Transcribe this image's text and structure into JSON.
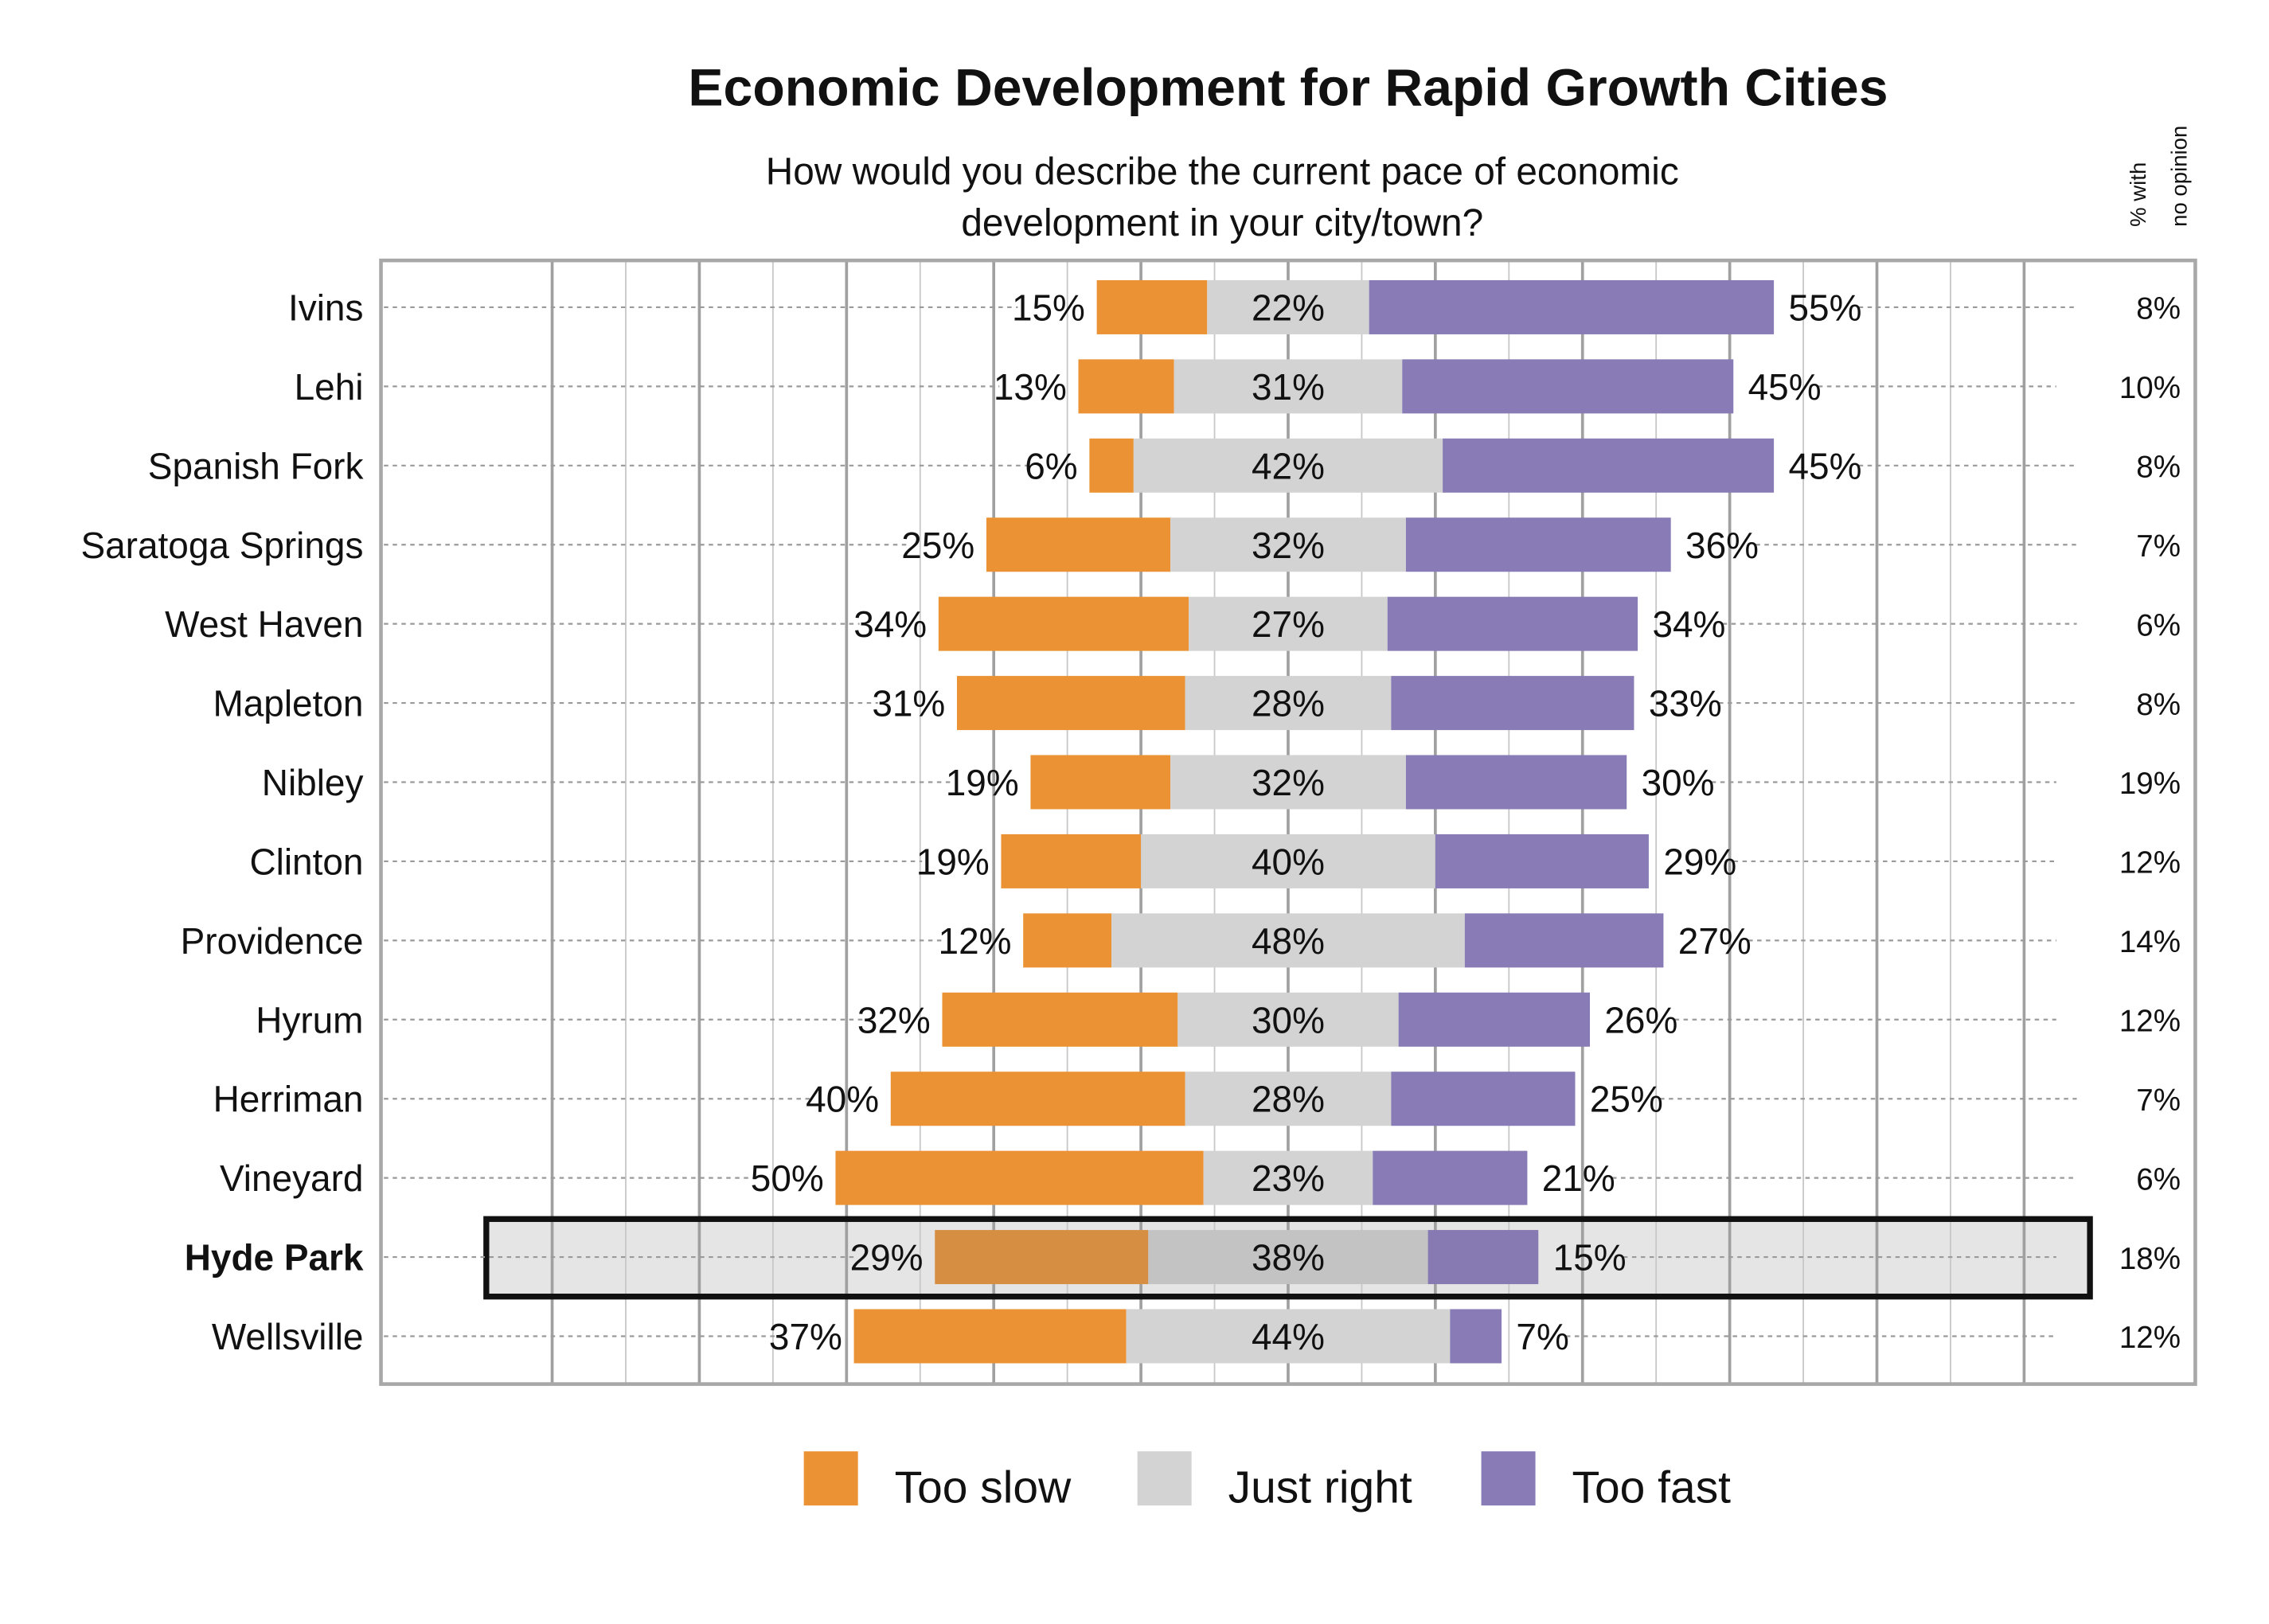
{
  "chart_data": {
    "type": "bar",
    "orientation": "horizontal-diverging-stacked",
    "title": "Economic Development for Rapid Growth Cities",
    "subtitle": [
      "How would you describe the current pace of economic",
      "development in your city/town?"
    ],
    "side_header": [
      "% with",
      "no opinion"
    ],
    "categories": [
      "Ivins",
      "Lehi",
      "Spanish Fork",
      "Saratoga Springs",
      "West Haven",
      "Mapleton",
      "Nibley",
      "Clinton",
      "Providence",
      "Hyrum",
      "Herriman",
      "Vineyard",
      "Hyde Park",
      "Wellsville"
    ],
    "highlighted": "Hyde Park",
    "series": [
      {
        "name": "Too slow",
        "color": "#EB9334",
        "values": [
          15,
          13,
          6,
          25,
          34,
          31,
          19,
          19,
          12,
          32,
          40,
          50,
          29,
          37
        ]
      },
      {
        "name": "Just right",
        "color": "#D3D3D3",
        "values": [
          22,
          31,
          42,
          32,
          27,
          28,
          32,
          40,
          48,
          30,
          28,
          23,
          38,
          44
        ]
      },
      {
        "name": "Too fast",
        "color": "#887BB6",
        "values": [
          55,
          45,
          45,
          36,
          34,
          33,
          30,
          29,
          27,
          26,
          25,
          21,
          15,
          7
        ]
      }
    ],
    "no_opinion": [
      8,
      10,
      8,
      7,
      6,
      8,
      19,
      12,
      14,
      12,
      7,
      6,
      18,
      12
    ],
    "value_format": "{v}%",
    "grid": true,
    "legend_position": "bottom"
  }
}
